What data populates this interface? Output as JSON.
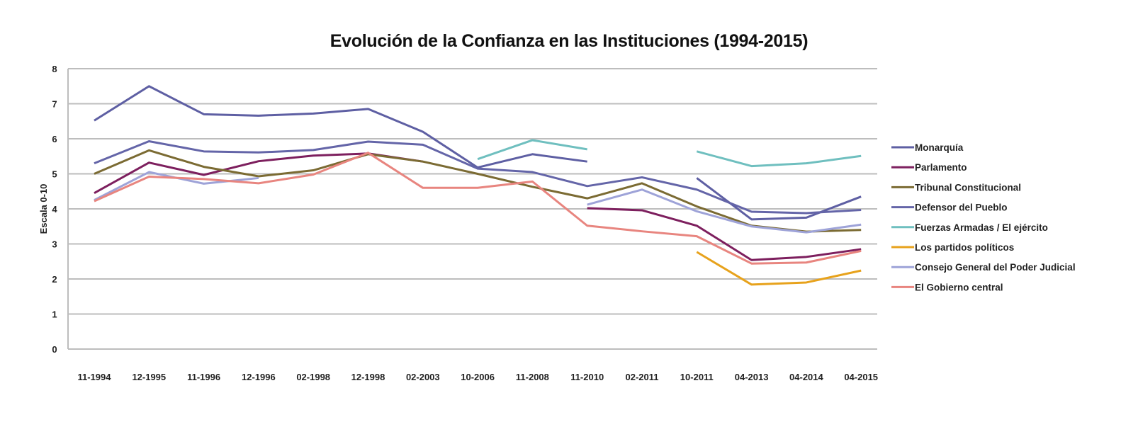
{
  "chart_data": {
    "type": "line",
    "title": "Evolución de la Confianza en las Instituciones (1994-2015)",
    "xlabel": "",
    "ylabel": "Escala 0-10",
    "ylim": [
      0,
      8
    ],
    "yticks": [
      "0",
      "1",
      "2",
      "3",
      "4",
      "5",
      "6",
      "7",
      "8"
    ],
    "grid": true,
    "legend_position": "right",
    "categories": [
      "11-1994",
      "12-1995",
      "11-1996",
      "12-1996",
      "02-1998",
      "12-1998",
      "02-2003",
      "10-2006",
      "11-2008",
      "11-2010",
      "02-2011",
      "10-2011",
      "04-2013",
      "04-2014",
      "04-2015"
    ],
    "series": [
      {
        "name": "Monarquía",
        "color": "#5e5fa3",
        "values": [
          6.52,
          7.5,
          6.7,
          6.66,
          6.72,
          6.85,
          6.2,
          5.18,
          5.56,
          5.35,
          null,
          4.88,
          3.7,
          3.75,
          4.35
        ]
      },
      {
        "name": "Parlamento",
        "color": "#7d1f5e",
        "values": [
          4.45,
          5.32,
          4.97,
          5.36,
          5.52,
          5.58,
          5.35,
          null,
          null,
          4.02,
          3.96,
          3.52,
          2.54,
          2.63,
          2.85
        ]
      },
      {
        "name": "Tribunal Constitucional",
        "color": "#7b6b33",
        "values": [
          5.0,
          5.67,
          5.2,
          4.93,
          5.1,
          5.56,
          5.35,
          5.0,
          4.63,
          4.3,
          4.73,
          4.07,
          3.52,
          3.35,
          3.4
        ]
      },
      {
        "name": "Defensor del Pueblo",
        "color": "#6465a8",
        "values": [
          5.3,
          5.93,
          5.64,
          5.61,
          5.68,
          5.92,
          5.83,
          5.15,
          5.05,
          4.65,
          4.9,
          4.55,
          3.92,
          3.88,
          3.97
        ]
      },
      {
        "name": "Fuerzas Armadas / El ejército",
        "color": "#6fbfbf",
        "values": [
          null,
          null,
          null,
          null,
          null,
          null,
          null,
          5.42,
          5.96,
          5.7,
          null,
          5.64,
          5.22,
          5.3,
          5.51
        ]
      },
      {
        "name": "Los partidos políticos",
        "color": "#e7a21c",
        "values": [
          null,
          null,
          null,
          null,
          null,
          null,
          null,
          null,
          null,
          null,
          null,
          2.77,
          1.84,
          1.9,
          2.24
        ]
      },
      {
        "name": "Consejo General del Poder Judicial",
        "color": "#9ea3d8",
        "values": [
          4.25,
          5.05,
          4.72,
          4.88,
          null,
          null,
          null,
          null,
          null,
          4.12,
          4.55,
          3.93,
          3.5,
          3.33,
          3.55
        ]
      },
      {
        "name": "El Gobierno central",
        "color": "#e8857f",
        "values": [
          4.22,
          4.92,
          4.85,
          4.73,
          4.98,
          5.6,
          4.6,
          4.6,
          4.78,
          3.52,
          3.36,
          3.22,
          2.44,
          2.47,
          2.8
        ]
      }
    ]
  }
}
